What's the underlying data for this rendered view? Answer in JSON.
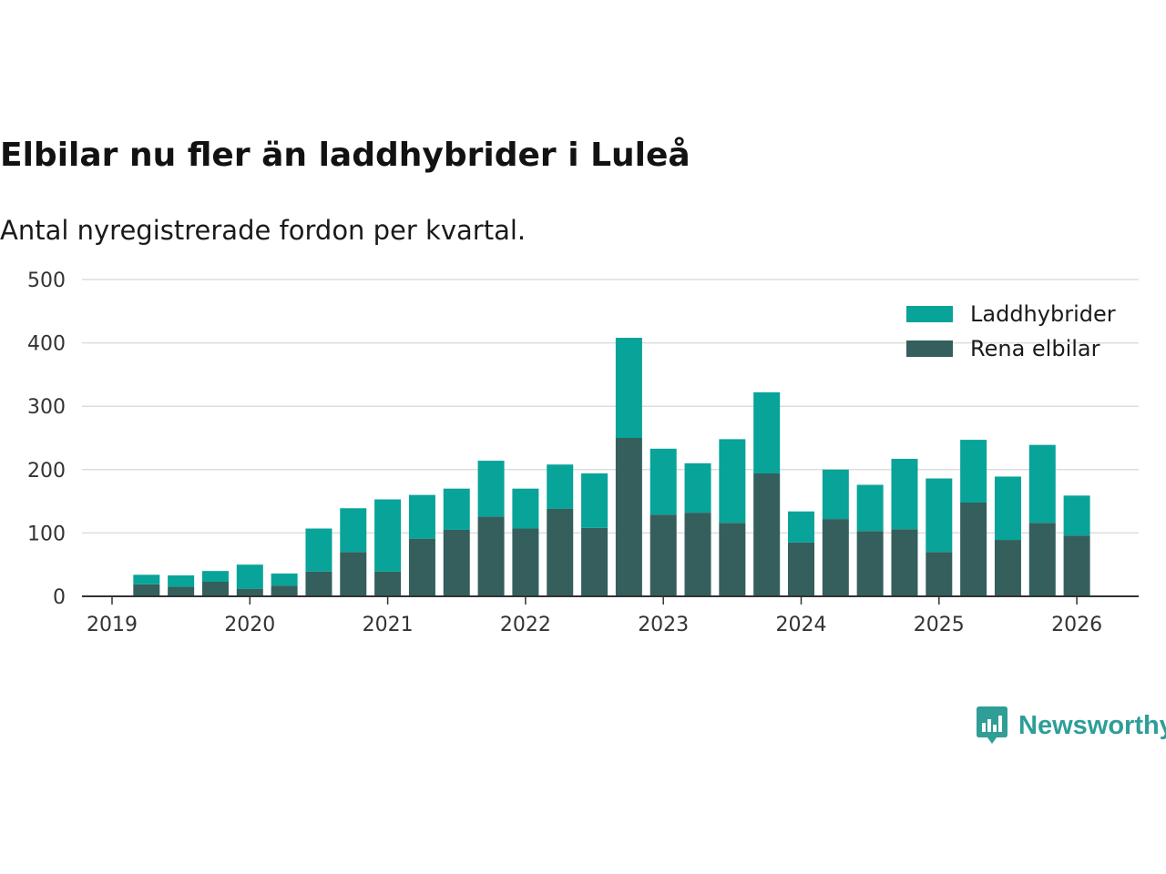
{
  "title": "Elbilar nu fler än laddhybrider i Luleå",
  "subtitle": "Antal nyregistrerade fordon per kvartal.",
  "logo": {
    "text": "Newsworthy",
    "icon": "bar-chart-speech-bubble-icon"
  },
  "colors": {
    "laddhybrider": "#08a399",
    "elbilar": "#345f5c",
    "grid": "#dddddd",
    "axis": "#333333",
    "logo": "#2e9e97"
  },
  "chart_data": {
    "type": "bar",
    "stacked": true,
    "title": "Elbilar nu fler än laddhybrider i Luleå",
    "subtitle": "Antal nyregistrerade fordon per kvartal.",
    "xlabel": "",
    "ylabel": "",
    "ylim": [
      0,
      500
    ],
    "yticks": [
      0,
      100,
      200,
      300,
      400,
      500
    ],
    "xticks": [
      "2019",
      "2020",
      "2021",
      "2022",
      "2023",
      "2024",
      "2025",
      "2026"
    ],
    "grid": true,
    "legend": {
      "position": "top-right",
      "entries": [
        "Laddhybrider",
        "Rena elbilar"
      ]
    },
    "categories": [
      "2019 Q2",
      "2019 Q3",
      "2019 Q4",
      "2020 Q1",
      "2020 Q2",
      "2020 Q3",
      "2020 Q4",
      "2021 Q1",
      "2021 Q2",
      "2021 Q3",
      "2021 Q4",
      "2022 Q1",
      "2022 Q2",
      "2022 Q3",
      "2022 Q4",
      "2023 Q1",
      "2023 Q2",
      "2023 Q3",
      "2023 Q4",
      "2024 Q1",
      "2024 Q2",
      "2024 Q3",
      "2024 Q4",
      "2025 Q1",
      "2025 Q2",
      "2025 Q3",
      "2025 Q4",
      "2026 Q1"
    ],
    "series": [
      {
        "name": "Rena elbilar",
        "values": [
          19,
          15,
          23,
          12,
          17,
          39,
          70,
          39,
          91,
          105,
          126,
          107,
          138,
          108,
          250,
          129,
          132,
          116,
          194,
          85,
          122,
          103,
          106,
          70,
          148,
          89,
          116,
          96
        ]
      },
      {
        "name": "Laddhybrider",
        "values": [
          15,
          18,
          17,
          38,
          19,
          68,
          69,
          114,
          69,
          65,
          88,
          63,
          70,
          86,
          158,
          104,
          78,
          132,
          128,
          49,
          78,
          73,
          111,
          116,
          99,
          100,
          123,
          63
        ]
      }
    ]
  }
}
